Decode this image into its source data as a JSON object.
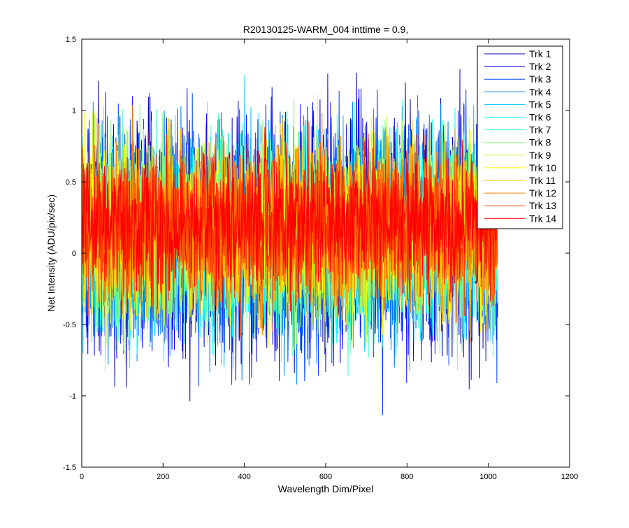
{
  "chart_data": {
    "type": "line",
    "title": "R20130125-WARM_004 inttime = 0.9,",
    "xlabel": "Wavelength Dim/Pixel",
    "ylabel": "Net Intensity (ADU/pix/sec)",
    "xlim": [
      0,
      1200
    ],
    "ylim": [
      -1.5,
      1.5
    ],
    "xticks": [
      0,
      200,
      400,
      600,
      800,
      1000,
      1200
    ],
    "xtick_labels": [
      "0",
      "200",
      "400",
      "600",
      "800",
      "1000",
      "1200"
    ],
    "yticks": [
      -1.5,
      -1,
      -0.5,
      0,
      0.5,
      1,
      1.5
    ],
    "ytick_labels": [
      "-1.5",
      "-1",
      "-0.5",
      "0",
      "0.5",
      "1",
      "1.5"
    ],
    "grid": false,
    "legend_position": "top-right",
    "n_points": 1024,
    "series": [
      {
        "name": "Trk 1",
        "color": "#0000bf",
        "mean": 0.12,
        "spread": 0.42
      },
      {
        "name": "Trk 2",
        "color": "#0000ff",
        "mean": 0.12,
        "spread": 0.42
      },
      {
        "name": "Trk 3",
        "color": "#0040ff",
        "mean": 0.12,
        "spread": 0.4
      },
      {
        "name": "Trk 4",
        "color": "#0080ff",
        "mean": 0.12,
        "spread": 0.38
      },
      {
        "name": "Trk 5",
        "color": "#00bfff",
        "mean": 0.12,
        "spread": 0.36
      },
      {
        "name": "Trk 6",
        "color": "#00ffff",
        "mean": 0.12,
        "spread": 0.36
      },
      {
        "name": "Trk 7",
        "color": "#40ffbf",
        "mean": 0.12,
        "spread": 0.34
      },
      {
        "name": "Trk 8",
        "color": "#80ff80",
        "mean": 0.13,
        "spread": 0.34
      },
      {
        "name": "Trk 9",
        "color": "#bfff40",
        "mean": 0.14,
        "spread": 0.32
      },
      {
        "name": "Trk 10",
        "color": "#ffff00",
        "mean": 0.15,
        "spread": 0.32
      },
      {
        "name": "Trk 11",
        "color": "#ffbf00",
        "mean": 0.16,
        "spread": 0.3
      },
      {
        "name": "Trk 12",
        "color": "#ff8000",
        "mean": 0.18,
        "spread": 0.3
      },
      {
        "name": "Trk 13",
        "color": "#ff4000",
        "mean": 0.2,
        "spread": 0.28
      },
      {
        "name": "Trk 14",
        "color": "#ff0000",
        "mean": 0.22,
        "spread": 0.26
      }
    ]
  }
}
